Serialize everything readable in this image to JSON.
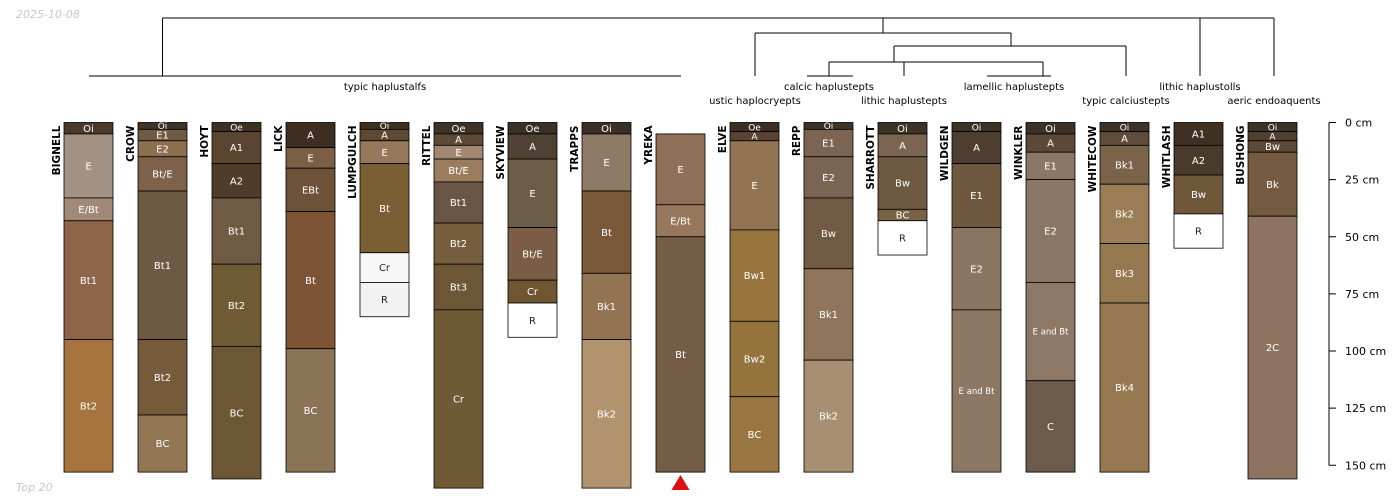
{
  "date_stamp": "2025-10-08",
  "footer_note": "Top 20",
  "taxa": [
    {
      "label": "typic haplustalfs"
    },
    {
      "label": "ustic haplocryepts"
    },
    {
      "label": "calcic haplustepts"
    },
    {
      "label": "lithic haplustepts"
    },
    {
      "label": "lamellic haplustepts"
    },
    {
      "label": "typic calciustepts"
    },
    {
      "label": "lithic haplustolls"
    },
    {
      "label": "aeric endoaquents"
    }
  ],
  "depth_axis": {
    "unit": "cm",
    "ticks": [
      {
        "depth": 0,
        "label": "0 cm"
      },
      {
        "depth": 25,
        "label": "25 cm"
      },
      {
        "depth": 50,
        "label": "50 cm"
      },
      {
        "depth": 75,
        "label": "75 cm"
      },
      {
        "depth": 100,
        "label": "100 cm"
      },
      {
        "depth": 125,
        "label": "125 cm"
      },
      {
        "depth": 150,
        "label": "150 cm"
      }
    ]
  },
  "profiles": [
    {
      "name": "BIGNELL",
      "horizons": [
        {
          "name": "Oi",
          "top": 0,
          "bottom": 5,
          "color": "#4a3a2e"
        },
        {
          "name": "E",
          "top": 5,
          "bottom": 33,
          "color": "#a39283"
        },
        {
          "name": "E/Bt",
          "top": 33,
          "bottom": 43,
          "color": "#a28876"
        },
        {
          "name": "Bt1",
          "top": 43,
          "bottom": 95,
          "color": "#8e6548"
        },
        {
          "name": "Bt2",
          "top": 95,
          "bottom": 153,
          "color": "#a6723e"
        }
      ]
    },
    {
      "name": "CROW",
      "horizons": [
        {
          "name": "Oi",
          "top": 0,
          "bottom": 3,
          "color": "#3f3226"
        },
        {
          "name": "E1",
          "top": 3,
          "bottom": 8,
          "color": "#6e5a45"
        },
        {
          "name": "E2",
          "top": 8,
          "bottom": 15,
          "color": "#8d6f50"
        },
        {
          "name": "Bt/E",
          "top": 15,
          "bottom": 30,
          "color": "#7d6249"
        },
        {
          "name": "Bt1",
          "top": 30,
          "bottom": 95,
          "color": "#6e5942"
        },
        {
          "name": "Bt2",
          "top": 95,
          "bottom": 128,
          "color": "#765b3b"
        },
        {
          "name": "BC",
          "top": 128,
          "bottom": 153,
          "color": "#927652"
        }
      ]
    },
    {
      "name": "HOYT",
      "horizons": [
        {
          "name": "Oe",
          "top": 0,
          "bottom": 4,
          "color": "#3e3124"
        },
        {
          "name": "A1",
          "top": 4,
          "bottom": 18,
          "color": "#5a4530"
        },
        {
          "name": "A2",
          "top": 18,
          "bottom": 33,
          "color": "#4f3c29"
        },
        {
          "name": "Bt1",
          "top": 33,
          "bottom": 62,
          "color": "#6f5a44"
        },
        {
          "name": "Bt2",
          "top": 62,
          "bottom": 98,
          "color": "#715b35"
        },
        {
          "name": "BC",
          "top": 98,
          "bottom": 156,
          "color": "#6c5634"
        }
      ]
    },
    {
      "name": "LICK",
      "horizons": [
        {
          "name": "A",
          "top": 0,
          "bottom": 11,
          "color": "#3d2e21"
        },
        {
          "name": "E",
          "top": 11,
          "bottom": 20,
          "color": "#7a5f45"
        },
        {
          "name": "EBt",
          "top": 20,
          "bottom": 39,
          "color": "#6e5237"
        },
        {
          "name": "Bt",
          "top": 39,
          "bottom": 99,
          "color": "#7e5436"
        },
        {
          "name": "BC",
          "top": 99,
          "bottom": 153,
          "color": "#8b7358"
        }
      ]
    },
    {
      "name": "LUMPGULCH",
      "horizons": [
        {
          "name": "Oi",
          "top": 0,
          "bottom": 3,
          "color": "#3d3124"
        },
        {
          "name": "A",
          "top": 3,
          "bottom": 8,
          "color": "#5e4a34"
        },
        {
          "name": "E",
          "top": 8,
          "bottom": 18,
          "color": "#96795b"
        },
        {
          "name": "Bt",
          "top": 18,
          "bottom": 57,
          "color": "#7a5f35"
        },
        {
          "name": "Cr",
          "top": 57,
          "bottom": 70,
          "color": "#f7f7f7"
        },
        {
          "name": "R",
          "top": 70,
          "bottom": 85,
          "color": "#f2f2f2"
        }
      ]
    },
    {
      "name": "RITTEL",
      "horizons": [
        {
          "name": "Oe",
          "top": 0,
          "bottom": 5,
          "color": "#3e3226"
        },
        {
          "name": "A",
          "top": 5,
          "bottom": 10,
          "color": "#5e4a36"
        },
        {
          "name": "E",
          "top": 10,
          "bottom": 16,
          "color": "#a08872"
        },
        {
          "name": "Bt/E",
          "top": 16,
          "bottom": 26,
          "color": "#9b7c5e"
        },
        {
          "name": "Bt1",
          "top": 26,
          "bottom": 44,
          "color": "#6a5544"
        },
        {
          "name": "Bt2",
          "top": 44,
          "bottom": 62,
          "color": "#755d3d"
        },
        {
          "name": "Bt3",
          "top": 62,
          "bottom": 82,
          "color": "#6d5635"
        },
        {
          "name": "Cr",
          "top": 82,
          "bottom": 160,
          "color": "#705a35"
        }
      ]
    },
    {
      "name": "SKYVIEW",
      "horizons": [
        {
          "name": "Oe",
          "top": 0,
          "bottom": 5,
          "color": "#3b3025"
        },
        {
          "name": "A",
          "top": 5,
          "bottom": 16,
          "color": "#4f4133"
        },
        {
          "name": "E",
          "top": 16,
          "bottom": 46,
          "color": "#6d5c46"
        },
        {
          "name": "Bt/E",
          "top": 46,
          "bottom": 69,
          "color": "#7b5c44"
        },
        {
          "name": "Cr",
          "top": 69,
          "bottom": 79,
          "color": "#6f5531"
        },
        {
          "name": "R",
          "top": 79,
          "bottom": 94,
          "color": "#ffffff"
        }
      ]
    },
    {
      "name": "TRAPPS",
      "horizons": [
        {
          "name": "Oi",
          "top": 0,
          "bottom": 5,
          "color": "#3b3025"
        },
        {
          "name": "E",
          "top": 5,
          "bottom": 30,
          "color": "#8f7a66"
        },
        {
          "name": "Bt",
          "top": 30,
          "bottom": 66,
          "color": "#79593a"
        },
        {
          "name": "Bk1",
          "top": 66,
          "bottom": 95,
          "color": "#927352"
        },
        {
          "name": "Bk2",
          "top": 95,
          "bottom": 160,
          "color": "#b1946e"
        }
      ]
    },
    {
      "name": "YREKA",
      "horizons": [
        {
          "name": "E",
          "top": 5,
          "bottom": 36,
          "color": "#8f7058"
        },
        {
          "name": "E/Bt",
          "top": 36,
          "bottom": 50,
          "color": "#98785d"
        },
        {
          "name": "Bt",
          "top": 50,
          "bottom": 153,
          "color": "#755c46"
        }
      ]
    },
    {
      "name": "ELVE",
      "horizons": [
        {
          "name": "Oe",
          "top": 0,
          "bottom": 4,
          "color": "#3c2e22"
        },
        {
          "name": "A",
          "top": 4,
          "bottom": 8,
          "color": "#5a442f"
        },
        {
          "name": "E",
          "top": 8,
          "bottom": 47,
          "color": "#927352"
        },
        {
          "name": "Bw1",
          "top": 47,
          "bottom": 87,
          "color": "#98753f"
        },
        {
          "name": "Bw2",
          "top": 87,
          "bottom": 120,
          "color": "#94733d"
        },
        {
          "name": "BC",
          "top": 120,
          "bottom": 153,
          "color": "#987541"
        }
      ]
    },
    {
      "name": "REPP",
      "horizons": [
        {
          "name": "Oi",
          "top": 0,
          "bottom": 3,
          "color": "#3f3327"
        },
        {
          "name": "E1",
          "top": 3,
          "bottom": 15,
          "color": "#7b6552"
        },
        {
          "name": "E2",
          "top": 15,
          "bottom": 33,
          "color": "#7a6552"
        },
        {
          "name": "Bw",
          "top": 33,
          "bottom": 64,
          "color": "#705a43"
        },
        {
          "name": "Bk1",
          "top": 64,
          "bottom": 104,
          "color": "#8e755c"
        },
        {
          "name": "Bk2",
          "top": 104,
          "bottom": 153,
          "color": "#a98f72"
        }
      ]
    },
    {
      "name": "SHARROTT",
      "horizons": [
        {
          "name": "Oi",
          "top": 0,
          "bottom": 5,
          "color": "#3d3226"
        },
        {
          "name": "A",
          "top": 5,
          "bottom": 15,
          "color": "#7b6450"
        },
        {
          "name": "Bw",
          "top": 15,
          "bottom": 38,
          "color": "#6e5942"
        },
        {
          "name": "BC",
          "top": 38,
          "bottom": 43,
          "color": "#7a6247"
        },
        {
          "name": "R",
          "top": 43,
          "bottom": 58,
          "color": "#ffffff"
        }
      ]
    },
    {
      "name": "WILDGEN",
      "horizons": [
        {
          "name": "Oi",
          "top": 0,
          "bottom": 4,
          "color": "#3d3226"
        },
        {
          "name": "A",
          "top": 4,
          "bottom": 18,
          "color": "#4d3e30"
        },
        {
          "name": "E1",
          "top": 18,
          "bottom": 46,
          "color": "#6f5840"
        },
        {
          "name": "E2",
          "top": 46,
          "bottom": 82,
          "color": "#8a7560"
        },
        {
          "name": "E and Bt",
          "top": 82,
          "bottom": 153,
          "color": "#8c7765"
        }
      ]
    },
    {
      "name": "WINKLER",
      "horizons": [
        {
          "name": "Oi",
          "top": 0,
          "bottom": 5,
          "color": "#3e3226"
        },
        {
          "name": "A",
          "top": 5,
          "bottom": 13,
          "color": "#5b4837"
        },
        {
          "name": "E1",
          "top": 13,
          "bottom": 25,
          "color": "#8c7766"
        },
        {
          "name": "E2",
          "top": 25,
          "bottom": 70,
          "color": "#8a7664"
        },
        {
          "name": "E and Bt",
          "top": 70,
          "bottom": 113,
          "color": "#8d7868"
        },
        {
          "name": "C",
          "top": 113,
          "bottom": 153,
          "color": "#6c5a4b"
        }
      ]
    },
    {
      "name": "WHITECOW",
      "horizons": [
        {
          "name": "Oi",
          "top": 0,
          "bottom": 4,
          "color": "#3e3226"
        },
        {
          "name": "A",
          "top": 4,
          "bottom": 10,
          "color": "#5f4c3a"
        },
        {
          "name": "Bk1",
          "top": 10,
          "bottom": 27,
          "color": "#7b6349"
        },
        {
          "name": "Bk2",
          "top": 27,
          "bottom": 53,
          "color": "#9a7d55"
        },
        {
          "name": "Bk3",
          "top": 53,
          "bottom": 79,
          "color": "#957850"
        },
        {
          "name": "Bk4",
          "top": 79,
          "bottom": 153,
          "color": "#957850"
        }
      ]
    },
    {
      "name": "WHITLASH",
      "horizons": [
        {
          "name": "A1",
          "top": 0,
          "bottom": 10,
          "color": "#3e3124"
        },
        {
          "name": "A2",
          "top": 10,
          "bottom": 23,
          "color": "#4a3a2b"
        },
        {
          "name": "Bw",
          "top": 23,
          "bottom": 40,
          "color": "#6e5839"
        },
        {
          "name": "R",
          "top": 40,
          "bottom": 55,
          "color": "#ffffff"
        }
      ]
    },
    {
      "name": "BUSHONG",
      "horizons": [
        {
          "name": "Oi",
          "top": 0,
          "bottom": 4,
          "color": "#3d3226"
        },
        {
          "name": "A",
          "top": 4,
          "bottom": 8,
          "color": "#4f4032"
        },
        {
          "name": "Bw",
          "top": 8,
          "bottom": 13,
          "color": "#5c4a37"
        },
        {
          "name": "Bk",
          "top": 13,
          "bottom": 41,
          "color": "#735a40"
        },
        {
          "name": "2C",
          "top": 41,
          "bottom": 156,
          "color": "#8e7360"
        }
      ]
    }
  ],
  "colors": {
    "accent_triangle": "#e01010",
    "line": "#000000",
    "label_light": "#ffffff",
    "label_dark": "#222222"
  }
}
